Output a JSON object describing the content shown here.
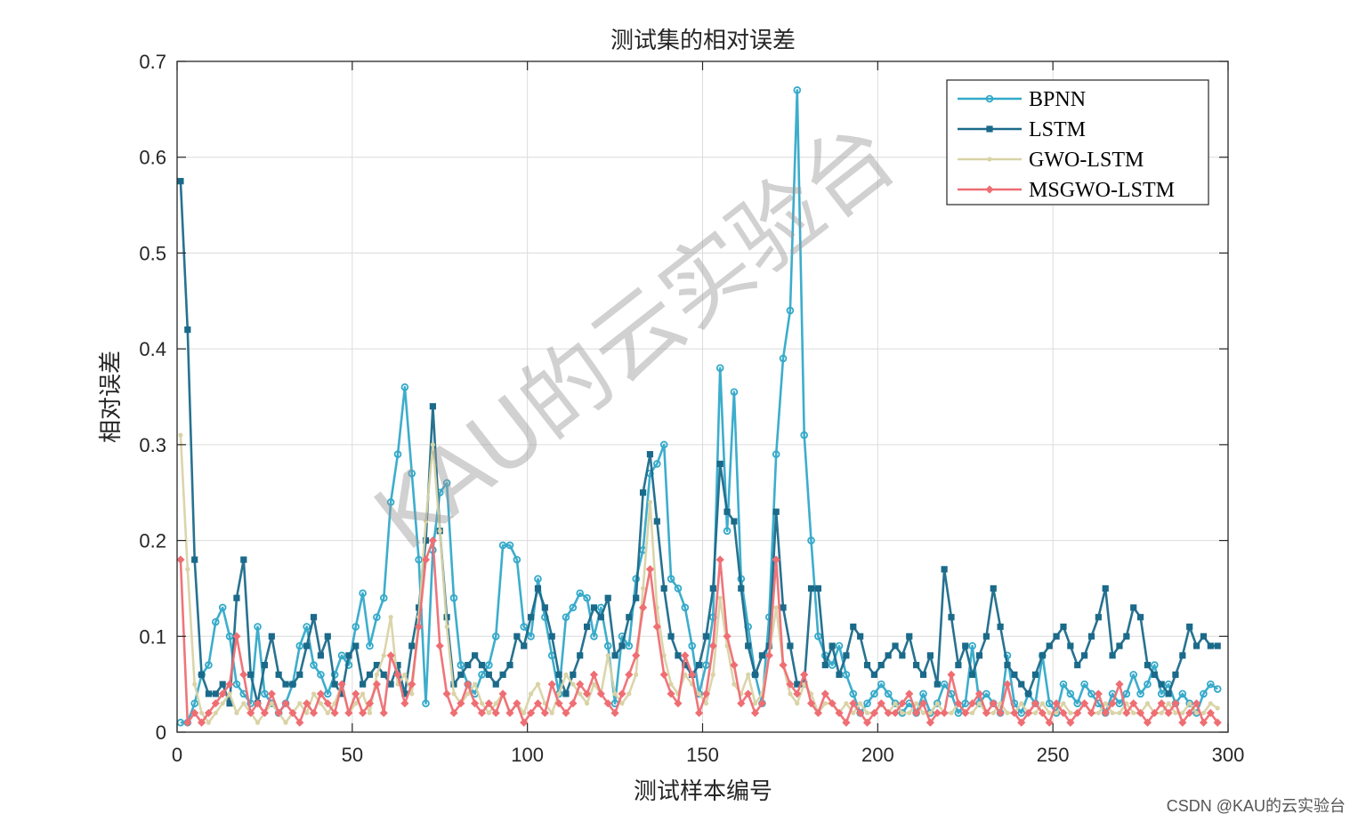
{
  "chart_data": {
    "type": "line",
    "title": "测试集的相对误差",
    "xlabel": "测试样本编号",
    "ylabel": "相对误差",
    "xlim": [
      0,
      300
    ],
    "ylim": [
      0,
      0.7
    ],
    "xticks": [
      0,
      50,
      100,
      150,
      200,
      250,
      300
    ],
    "yticks": [
      0,
      0.1,
      0.2,
      0.3,
      0.4,
      0.5,
      0.6,
      0.7
    ],
    "grid": true,
    "legend_position": "top-right",
    "x": [
      1,
      3,
      5,
      7,
      9,
      11,
      13,
      15,
      17,
      19,
      21,
      23,
      25,
      27,
      29,
      31,
      33,
      35,
      37,
      39,
      41,
      43,
      45,
      47,
      49,
      51,
      53,
      55,
      57,
      59,
      61,
      63,
      65,
      67,
      69,
      71,
      73,
      75,
      77,
      79,
      81,
      83,
      85,
      87,
      89,
      91,
      93,
      95,
      97,
      99,
      101,
      103,
      105,
      107,
      109,
      111,
      113,
      115,
      117,
      119,
      121,
      123,
      125,
      127,
      129,
      131,
      133,
      135,
      137,
      139,
      141,
      143,
      145,
      147,
      149,
      151,
      153,
      155,
      157,
      159,
      161,
      163,
      165,
      167,
      169,
      171,
      173,
      175,
      177,
      179,
      181,
      183,
      185,
      187,
      189,
      191,
      193,
      195,
      197,
      199,
      201,
      203,
      205,
      207,
      209,
      211,
      213,
      215,
      217,
      219,
      221,
      223,
      225,
      227,
      229,
      231,
      233,
      235,
      237,
      239,
      241,
      243,
      245,
      247,
      249,
      251,
      253,
      255,
      257,
      259,
      261,
      263,
      265,
      267,
      269,
      271,
      273,
      275,
      277,
      279,
      281,
      283,
      285,
      287,
      289,
      291,
      293,
      295,
      297
    ],
    "series": [
      {
        "name": "BPNN",
        "color": "#33A9C9",
        "marker": "circle",
        "values": [
          0.01,
          0.01,
          0.03,
          0.06,
          0.07,
          0.115,
          0.13,
          0.1,
          0.05,
          0.04,
          0.03,
          0.11,
          0.04,
          0.03,
          0.02,
          0.03,
          0.05,
          0.09,
          0.11,
          0.07,
          0.06,
          0.04,
          0.06,
          0.08,
          0.07,
          0.11,
          0.145,
          0.09,
          0.12,
          0.14,
          0.24,
          0.29,
          0.36,
          0.27,
          0.18,
          0.03,
          0.19,
          0.25,
          0.26,
          0.14,
          0.07,
          0.05,
          0.04,
          0.06,
          0.07,
          0.1,
          0.195,
          0.195,
          0.18,
          0.11,
          0.1,
          0.16,
          0.12,
          0.08,
          0.04,
          0.12,
          0.13,
          0.145,
          0.14,
          0.1,
          0.13,
          0.09,
          0.03,
          0.1,
          0.09,
          0.16,
          0.19,
          0.27,
          0.28,
          0.3,
          0.16,
          0.15,
          0.13,
          0.09,
          0.04,
          0.07,
          0.12,
          0.38,
          0.21,
          0.355,
          0.16,
          0.11,
          0.06,
          0.03,
          0.12,
          0.29,
          0.39,
          0.44,
          0.67,
          0.31,
          0.2,
          0.1,
          0.08,
          0.07,
          0.09,
          0.06,
          0.04,
          0.02,
          0.03,
          0.04,
          0.05,
          0.04,
          0.03,
          0.02,
          0.03,
          0.02,
          0.04,
          0.02,
          0.03,
          0.05,
          0.04,
          0.02,
          0.03,
          0.09,
          0.03,
          0.04,
          0.03,
          0.02,
          0.08,
          0.03,
          0.02,
          0.04,
          0.03,
          0.08,
          0.03,
          0.02,
          0.05,
          0.04,
          0.03,
          0.05,
          0.04,
          0.03,
          0.02,
          0.04,
          0.03,
          0.04,
          0.06,
          0.04,
          0.05,
          0.07,
          0.04,
          0.05,
          0.03,
          0.04,
          0.03,
          0.02,
          0.04,
          0.05,
          0.045
        ]
      },
      {
        "name": "LSTM",
        "color": "#1B6A8A",
        "marker": "square",
        "values": [
          0.575,
          0.42,
          0.18,
          0.06,
          0.04,
          0.04,
          0.05,
          0.03,
          0.14,
          0.18,
          0.06,
          0.03,
          0.07,
          0.1,
          0.06,
          0.05,
          0.05,
          0.06,
          0.09,
          0.12,
          0.08,
          0.1,
          0.05,
          0.04,
          0.08,
          0.09,
          0.05,
          0.06,
          0.07,
          0.06,
          0.05,
          0.07,
          0.04,
          0.09,
          0.13,
          0.2,
          0.34,
          0.21,
          0.12,
          0.05,
          0.06,
          0.07,
          0.08,
          0.07,
          0.06,
          0.05,
          0.06,
          0.07,
          0.1,
          0.09,
          0.12,
          0.15,
          0.13,
          0.1,
          0.06,
          0.04,
          0.06,
          0.08,
          0.11,
          0.13,
          0.12,
          0.14,
          0.08,
          0.09,
          0.12,
          0.14,
          0.25,
          0.29,
          0.22,
          0.15,
          0.1,
          0.08,
          0.07,
          0.06,
          0.07,
          0.1,
          0.15,
          0.28,
          0.23,
          0.22,
          0.15,
          0.09,
          0.06,
          0.08,
          0.09,
          0.23,
          0.13,
          0.09,
          0.05,
          0.05,
          0.15,
          0.15,
          0.07,
          0.09,
          0.06,
          0.08,
          0.11,
          0.1,
          0.07,
          0.06,
          0.07,
          0.08,
          0.09,
          0.08,
          0.1,
          0.07,
          0.06,
          0.08,
          0.05,
          0.17,
          0.12,
          0.07,
          0.09,
          0.06,
          0.08,
          0.1,
          0.15,
          0.11,
          0.07,
          0.06,
          0.05,
          0.04,
          0.06,
          0.08,
          0.09,
          0.1,
          0.11,
          0.09,
          0.07,
          0.08,
          0.1,
          0.12,
          0.15,
          0.08,
          0.09,
          0.1,
          0.13,
          0.12,
          0.07,
          0.06,
          0.05,
          0.04,
          0.06,
          0.08,
          0.11,
          0.09,
          0.1,
          0.09,
          0.09
        ]
      },
      {
        "name": "GWO-LSTM",
        "color": "#D9D3A6",
        "marker": "dot",
        "values": [
          0.31,
          0.17,
          0.05,
          0.02,
          0.01,
          0.02,
          0.03,
          0.04,
          0.02,
          0.03,
          0.02,
          0.01,
          0.02,
          0.03,
          0.02,
          0.01,
          0.02,
          0.03,
          0.02,
          0.04,
          0.03,
          0.02,
          0.03,
          0.05,
          0.02,
          0.03,
          0.04,
          0.02,
          0.06,
          0.08,
          0.12,
          0.05,
          0.06,
          0.04,
          0.12,
          0.22,
          0.3,
          0.21,
          0.11,
          0.04,
          0.03,
          0.04,
          0.05,
          0.03,
          0.02,
          0.03,
          0.04,
          0.02,
          0.03,
          0.02,
          0.04,
          0.05,
          0.03,
          0.02,
          0.04,
          0.06,
          0.05,
          0.04,
          0.03,
          0.05,
          0.04,
          0.08,
          0.04,
          0.03,
          0.04,
          0.06,
          0.15,
          0.24,
          0.13,
          0.08,
          0.05,
          0.04,
          0.06,
          0.05,
          0.04,
          0.03,
          0.06,
          0.14,
          0.09,
          0.05,
          0.04,
          0.06,
          0.03,
          0.04,
          0.08,
          0.13,
          0.07,
          0.04,
          0.03,
          0.05,
          0.04,
          0.02,
          0.03,
          0.03,
          0.02,
          0.03,
          0.02,
          0.03,
          0.02,
          0.02,
          0.03,
          0.02,
          0.03,
          0.02,
          0.02,
          0.03,
          0.02,
          0.02,
          0.03,
          0.02,
          0.02,
          0.03,
          0.02,
          0.02,
          0.03,
          0.02,
          0.02,
          0.03,
          0.02,
          0.02,
          0.03,
          0.02,
          0.02,
          0.03,
          0.02,
          0.02,
          0.03,
          0.02,
          0.02,
          0.03,
          0.02,
          0.02,
          0.03,
          0.02,
          0.02,
          0.03,
          0.02,
          0.02,
          0.03,
          0.02,
          0.02,
          0.03,
          0.02,
          0.02,
          0.03,
          0.02,
          0.02,
          0.03,
          0.025
        ]
      },
      {
        "name": "MSGWO-LSTM",
        "color": "#EE6E73",
        "marker": "diamond",
        "values": [
          0.18,
          0.01,
          0.02,
          0.01,
          0.02,
          0.03,
          0.04,
          0.05,
          0.1,
          0.06,
          0.02,
          0.03,
          0.02,
          0.04,
          0.02,
          0.03,
          0.02,
          0.01,
          0.03,
          0.02,
          0.04,
          0.03,
          0.02,
          0.05,
          0.02,
          0.04,
          0.02,
          0.03,
          0.05,
          0.02,
          0.08,
          0.06,
          0.03,
          0.05,
          0.11,
          0.18,
          0.2,
          0.09,
          0.04,
          0.02,
          0.03,
          0.05,
          0.03,
          0.02,
          0.03,
          0.02,
          0.04,
          0.02,
          0.03,
          0.01,
          0.02,
          0.03,
          0.02,
          0.05,
          0.03,
          0.02,
          0.03,
          0.05,
          0.04,
          0.06,
          0.04,
          0.03,
          0.02,
          0.04,
          0.06,
          0.08,
          0.13,
          0.17,
          0.11,
          0.06,
          0.04,
          0.03,
          0.08,
          0.06,
          0.02,
          0.04,
          0.09,
          0.18,
          0.1,
          0.07,
          0.03,
          0.04,
          0.02,
          0.03,
          0.08,
          0.18,
          0.07,
          0.05,
          0.04,
          0.06,
          0.03,
          0.02,
          0.04,
          0.03,
          0.02,
          0.01,
          0.03,
          0.02,
          0.01,
          0.02,
          0.03,
          0.02,
          0.02,
          0.03,
          0.04,
          0.02,
          0.03,
          0.01,
          0.02,
          0.02,
          0.06,
          0.03,
          0.02,
          0.03,
          0.04,
          0.02,
          0.03,
          0.02,
          0.05,
          0.02,
          0.01,
          0.02,
          0.03,
          0.02,
          0.01,
          0.03,
          0.02,
          0.01,
          0.02,
          0.03,
          0.02,
          0.04,
          0.02,
          0.03,
          0.05,
          0.02,
          0.03,
          0.02,
          0.01,
          0.02,
          0.03,
          0.02,
          0.03,
          0.01,
          0.02,
          0.03,
          0.01,
          0.02,
          0.01
        ]
      }
    ]
  },
  "watermark": "KAU的云实验台",
  "credit": "CSDN @KAU的云实验台"
}
